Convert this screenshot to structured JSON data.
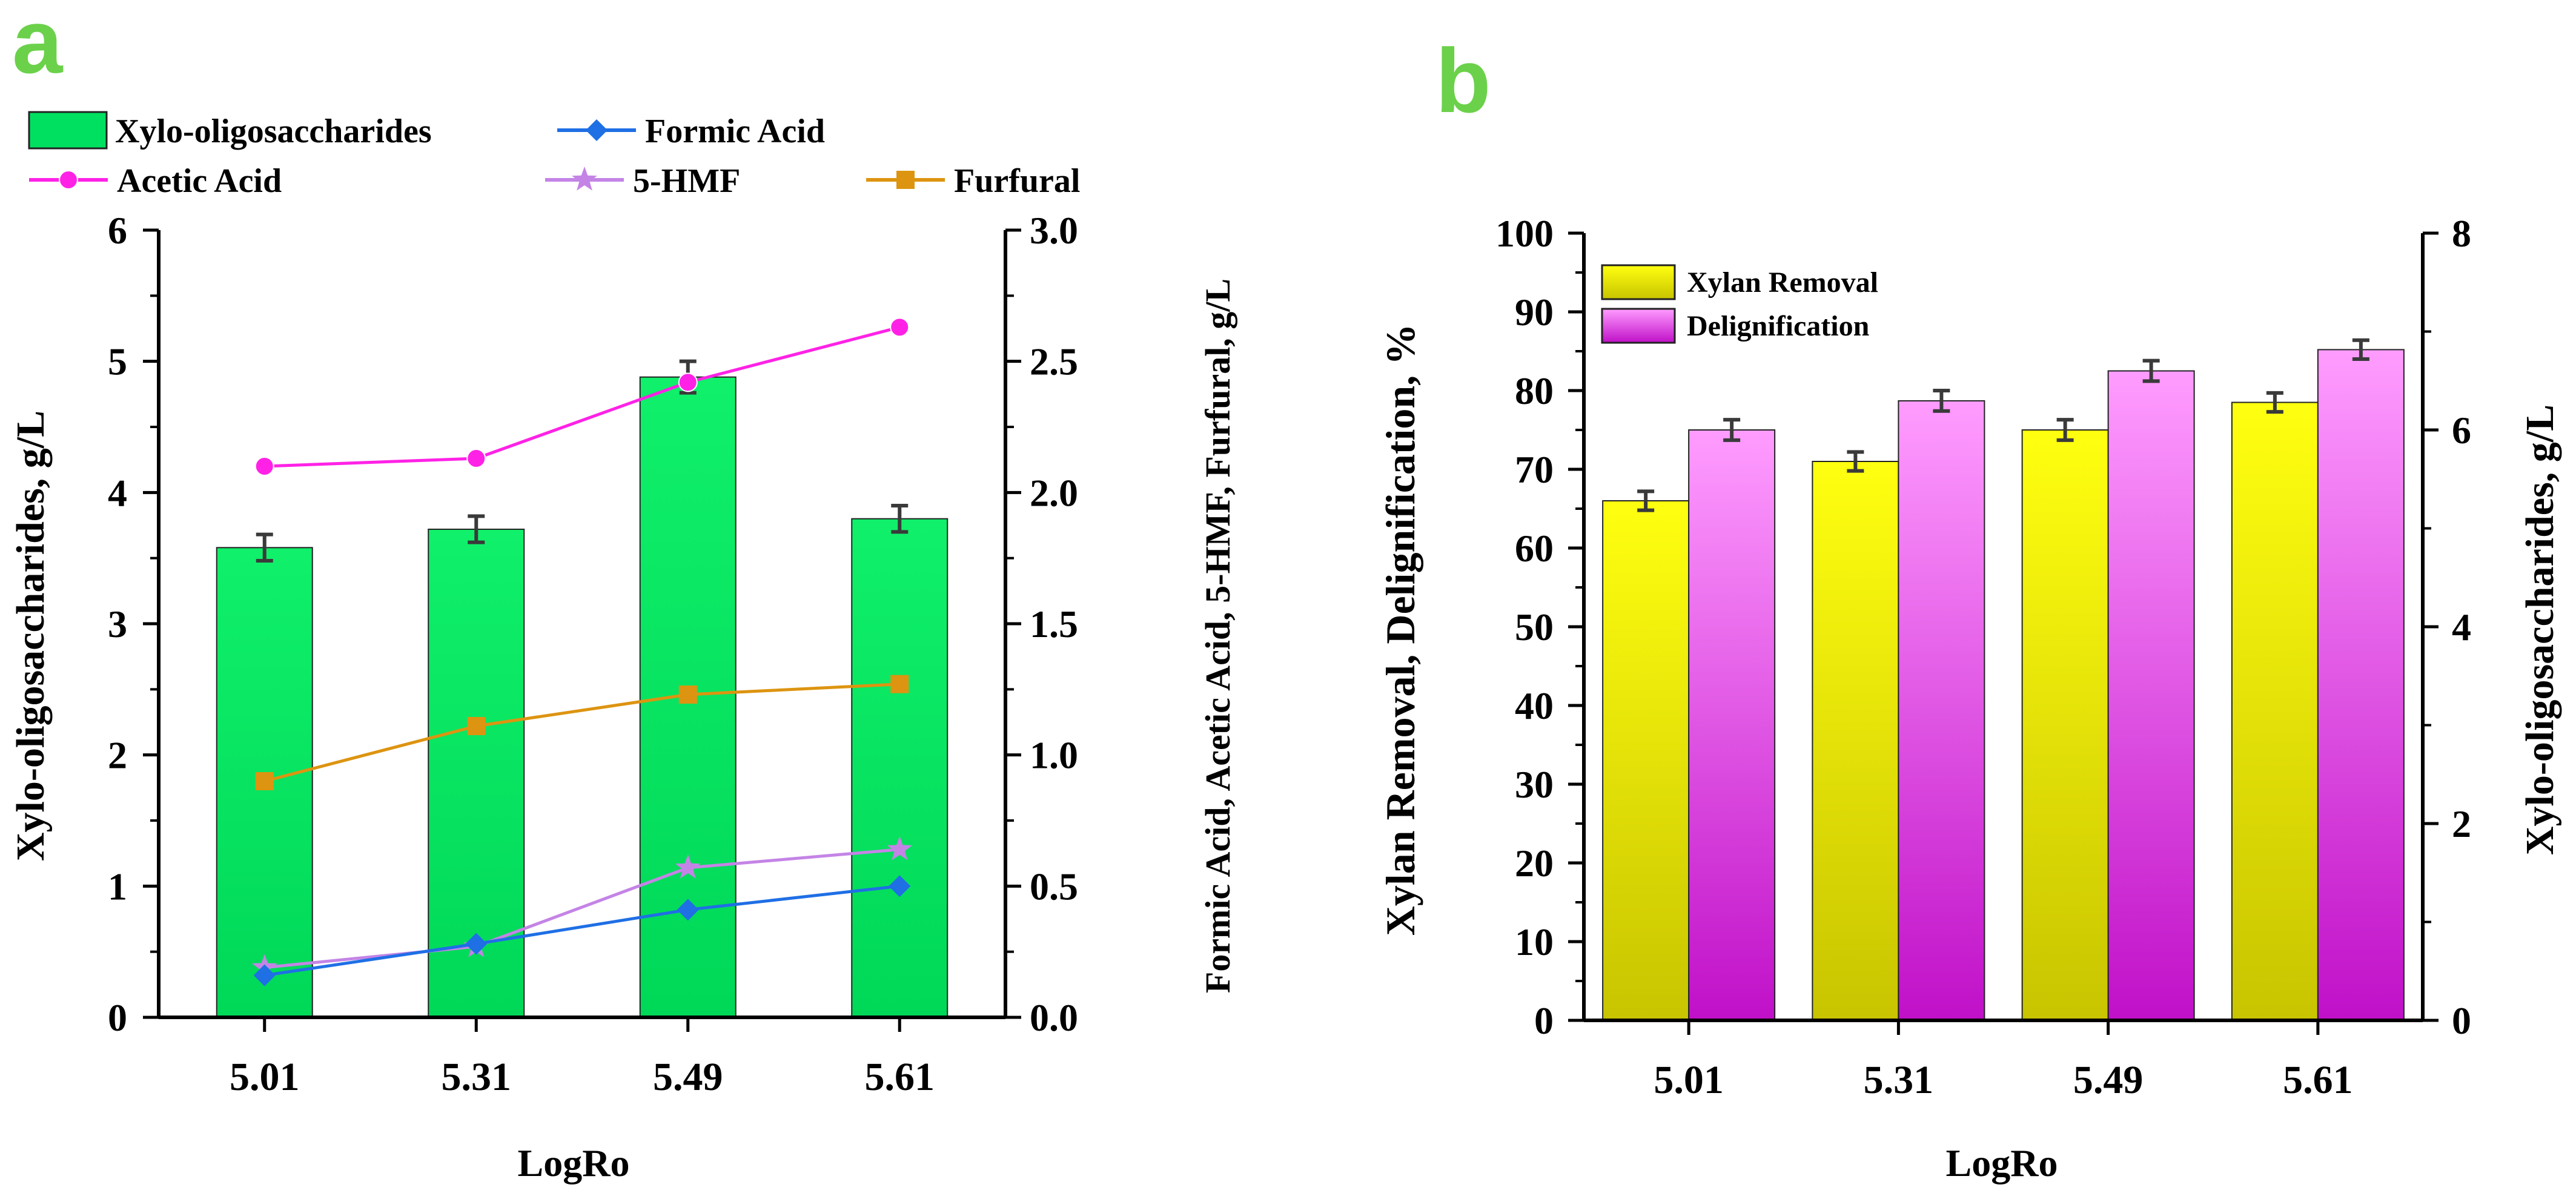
{
  "chart_data": [
    {
      "panel_label": "a",
      "type": "bar+line",
      "categories": [
        "5.01",
        "5.31",
        "5.49",
        "5.61"
      ],
      "xlabel": "LogRo",
      "ylabel_left": "Xylo-oligosaccharides, g/L",
      "ylabel_right": "Formic Acid, Acetic Acid, 5-HMF, Furfural, g/L",
      "ylim_left": [
        0,
        6
      ],
      "ylim_right": [
        0,
        3
      ],
      "yticks_left": [
        "0",
        "1",
        "2",
        "3",
        "4",
        "5",
        "6"
      ],
      "yticks_right": [
        "0.0",
        "0.5",
        "1.0",
        "1.5",
        "2.0",
        "2.5",
        "3.0"
      ],
      "bars": {
        "name": "Xylo-oligosaccharides",
        "color": "#00e060",
        "values": [
          3.58,
          3.72,
          4.88,
          3.8
        ],
        "errors": [
          0.1,
          0.1,
          0.12,
          0.1
        ],
        "axis": "left"
      },
      "series": [
        {
          "name": "Formic Acid",
          "color": "#1f6fe5",
          "marker": "diamond",
          "axis": "right",
          "values": [
            0.16,
            0.28,
            0.41,
            0.5
          ]
        },
        {
          "name": "Acetic Acid",
          "color": "#ff22e6",
          "marker": "circle",
          "axis": "right",
          "values": [
            2.1,
            2.13,
            2.42,
            2.63
          ]
        },
        {
          "name": "5-HMF",
          "color": "#c484e6",
          "marker": "star",
          "axis": "right",
          "values": [
            0.19,
            0.27,
            0.57,
            0.64
          ]
        },
        {
          "name": "Furfural",
          "color": "#dd9411",
          "marker": "square",
          "axis": "right",
          "values": [
            0.9,
            1.11,
            1.23,
            1.27
          ]
        }
      ]
    },
    {
      "panel_label": "b",
      "type": "bar",
      "categories": [
        "5.01",
        "5.31",
        "5.49",
        "5.61"
      ],
      "xlabel": "LogRo",
      "ylabel_left": "Xylan Removal, Delignification, %",
      "ylabel_right": "Xylo-oligosaccharides, g/L",
      "ylim_left": [
        0,
        100
      ],
      "ylim_right": [
        0,
        8
      ],
      "yticks_left": [
        "0",
        "10",
        "20",
        "30",
        "40",
        "50",
        "60",
        "70",
        "80",
        "90",
        "100"
      ],
      "yticks_right": [
        "0",
        "2",
        "4",
        "6",
        "8"
      ],
      "series": [
        {
          "name": "Xylan Removal",
          "color": "#e8e800",
          "values": [
            66,
            71,
            75,
            78.5
          ],
          "errors": [
            1.2,
            1.2,
            1.3,
            1.2
          ]
        },
        {
          "name": "Delignification",
          "color": "#ee44ee",
          "values": [
            75,
            78.7,
            82.5,
            85.2
          ],
          "errors": [
            1.3,
            1.3,
            1.3,
            1.2
          ]
        }
      ]
    }
  ]
}
